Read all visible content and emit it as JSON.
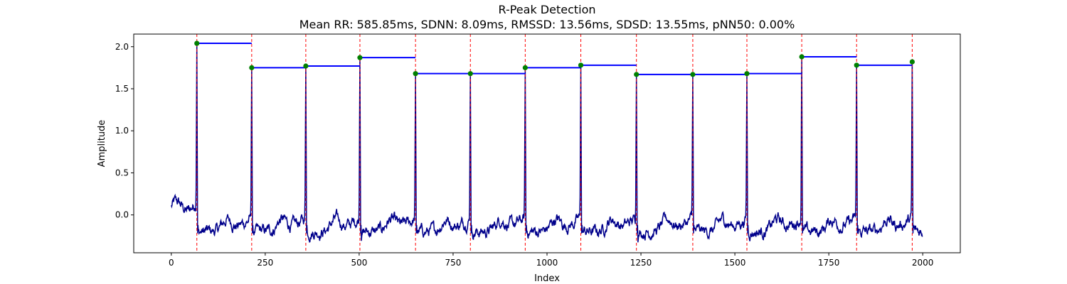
{
  "chart_data": {
    "type": "line",
    "title": "R-Peak Detection",
    "subtitle": "Mean RR: 585.85ms, SDNN: 8.09ms, RMSSD: 13.56ms, SDSD: 13.55ms, pNN50: 0.00%",
    "xlabel": "Index",
    "ylabel": "Amplitude",
    "xlim": [
      -100,
      2100
    ],
    "ylim": [
      -0.45,
      2.15
    ],
    "x_ticks": [
      0,
      250,
      500,
      750,
      1000,
      1250,
      1500,
      1750,
      2000
    ],
    "x_tick_labels": [
      "0",
      "250",
      "500",
      "750",
      "1000",
      "1250",
      "1500",
      "1750",
      "2000"
    ],
    "y_ticks": [
      0.0,
      0.5,
      1.0,
      1.5,
      2.0
    ],
    "y_tick_labels": [
      "0.0",
      "0.5",
      "1.0",
      "1.5",
      "2.0"
    ],
    "grid": false,
    "signal": {
      "length": 2000,
      "baseline_start": 0.1,
      "color": "#00008b"
    },
    "peaks": {
      "x": [
        68,
        214,
        358,
        502,
        650,
        796,
        942,
        1090,
        1238,
        1388,
        1532,
        1678,
        1824,
        1972
      ],
      "y": [
        2.04,
        1.75,
        1.77,
        1.87,
        1.68,
        1.68,
        1.75,
        1.78,
        1.67,
        1.67,
        1.68,
        1.88,
        1.78,
        1.82
      ],
      "marker_color": "#008000",
      "line_color": "#ff0000"
    },
    "rr_intervals": {
      "color": "#0000ff"
    },
    "colors": {
      "signal": "#00008b",
      "peak_marker": "#008000",
      "peak_line": "#ff0000",
      "rr_line": "#0000ff"
    }
  }
}
